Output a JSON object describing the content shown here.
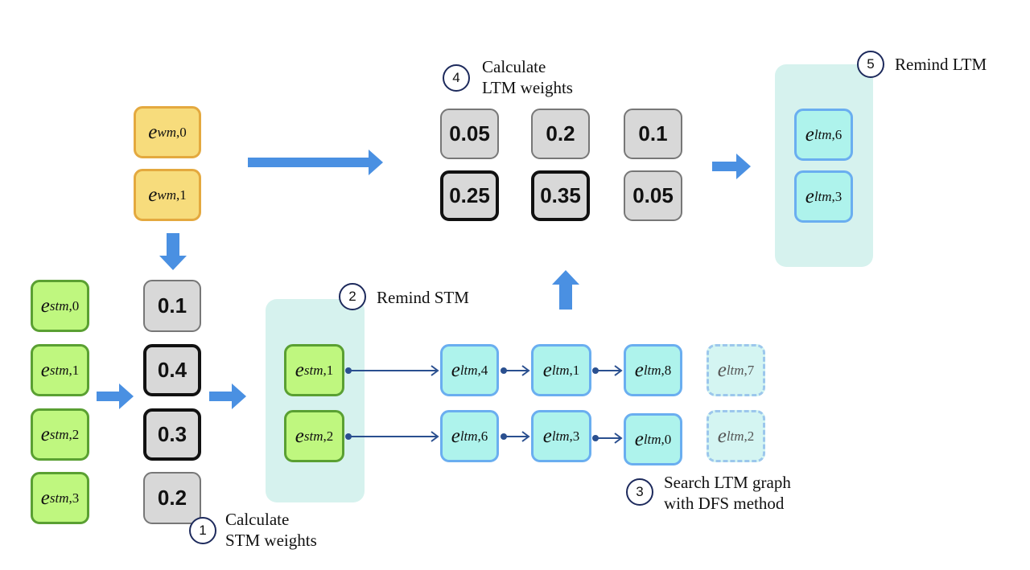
{
  "colors": {
    "arrow": "#4a90e2",
    "connector": "#2a4f8f",
    "wm": "#f7dc7c",
    "stm": "#bff77f",
    "ltm": "#aef3ec",
    "panel": "#d6f2ee"
  },
  "wm_nodes": [
    {
      "base": "e",
      "sub": "wm",
      "idx": "0"
    },
    {
      "base": "e",
      "sub": "wm",
      "idx": "1"
    }
  ],
  "stm_nodes": [
    {
      "base": "e",
      "sub": "stm",
      "idx": "0"
    },
    {
      "base": "e",
      "sub": "stm",
      "idx": "1"
    },
    {
      "base": "e",
      "sub": "stm",
      "idx": "2"
    },
    {
      "base": "e",
      "sub": "stm",
      "idx": "3"
    }
  ],
  "stm_weights": [
    {
      "value": "0.1",
      "selected": false
    },
    {
      "value": "0.4",
      "selected": true
    },
    {
      "value": "0.3",
      "selected": true
    },
    {
      "value": "0.2",
      "selected": false
    }
  ],
  "reminded_stm": [
    {
      "base": "e",
      "sub": "stm",
      "idx": "1"
    },
    {
      "base": "e",
      "sub": "stm",
      "idx": "2"
    }
  ],
  "ltm_paths": [
    [
      {
        "base": "e",
        "sub": "ltm",
        "idx": "4"
      },
      {
        "base": "e",
        "sub": "ltm",
        "idx": "1"
      },
      {
        "base": "e",
        "sub": "ltm",
        "idx": "8"
      },
      {
        "base": "e",
        "sub": "ltm",
        "idx": "7",
        "pruned": true
      }
    ],
    [
      {
        "base": "e",
        "sub": "ltm",
        "idx": "6"
      },
      {
        "base": "e",
        "sub": "ltm",
        "idx": "3"
      },
      {
        "base": "e",
        "sub": "ltm",
        "idx": "0"
      },
      {
        "base": "e",
        "sub": "ltm",
        "idx": "2",
        "pruned": true
      }
    ]
  ],
  "ltm_weights": [
    [
      {
        "value": "0.05",
        "selected": false
      },
      {
        "value": "0.2",
        "selected": false
      },
      {
        "value": "0.1",
        "selected": false
      }
    ],
    [
      {
        "value": "0.25",
        "selected": true
      },
      {
        "value": "0.35",
        "selected": true
      },
      {
        "value": "0.05",
        "selected": false
      }
    ]
  ],
  "reminded_ltm": [
    {
      "base": "e",
      "sub": "ltm",
      "idx": "6"
    },
    {
      "base": "e",
      "sub": "ltm",
      "idx": "3"
    }
  ],
  "steps": [
    {
      "num": "1",
      "line1": "Calculate",
      "line2": "STM weights"
    },
    {
      "num": "2",
      "line1": "Remind STM",
      "line2": ""
    },
    {
      "num": "3",
      "line1": "Search LTM graph",
      "line2": "with DFS method"
    },
    {
      "num": "4",
      "line1": "Calculate",
      "line2": "LTM weights"
    },
    {
      "num": "5",
      "line1": "Remind LTM",
      "line2": ""
    }
  ]
}
